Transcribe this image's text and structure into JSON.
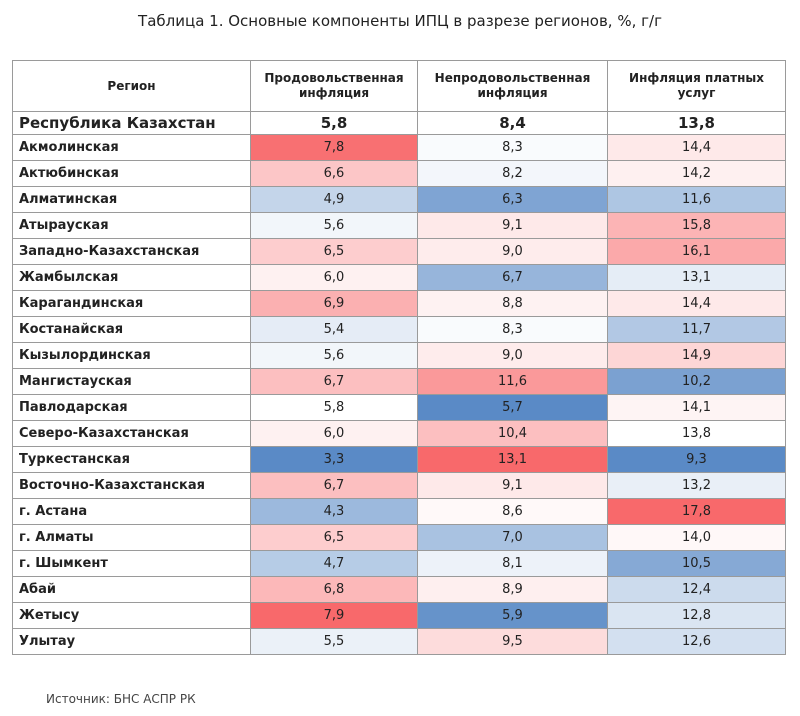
{
  "title": "Таблица 1. Основные компоненты ИПЦ в разрезе регионов, %, г/г",
  "table": {
    "header": [
      "Регион",
      "Продовольственная инфляция",
      "Непродовольственная инфляция",
      "Инфляция платных услуг"
    ],
    "rows": [
      [
        "Республика Казахстан",
        "5,8",
        "8,4",
        "13,8"
      ],
      [
        "Акмолинская",
        "7,8",
        "8,3",
        "14,4"
      ],
      [
        "Актюбинская",
        "6,6",
        "8,2",
        "14,2"
      ],
      [
        "Алматинская",
        "4,9",
        "6,3",
        "11,6"
      ],
      [
        "Атырауская",
        "5,6",
        "9,1",
        "15,8"
      ],
      [
        "Западно-Казахстанская",
        "6,5",
        "9,0",
        "16,1"
      ],
      [
        "Жамбылская",
        "6,0",
        "6,7",
        "13,1"
      ],
      [
        "Карагандинская",
        "6,9",
        "8,8",
        "14,4"
      ],
      [
        "Костанайская",
        "5,4",
        "8,3",
        "11,7"
      ],
      [
        "Кызылординская",
        "5,6",
        "9,0",
        "14,9"
      ],
      [
        "Мангистауская",
        "6,7",
        "11,6",
        "10,2"
      ],
      [
        "Павлодарская",
        "5,8",
        "5,7",
        "14,1"
      ],
      [
        "Северо-Казахстанская",
        "6,0",
        "10,4",
        "13,8"
      ],
      [
        "Туркестанская",
        "3,3",
        "13,1",
        "9,3"
      ],
      [
        "Восточно-Казахстанская",
        "6,7",
        "9,1",
        "13,2"
      ],
      [
        "г. Астана",
        "4,3",
        "8,6",
        "17,8"
      ],
      [
        "г. Алматы",
        "6,5",
        "7,0",
        "14,0"
      ],
      [
        "г. Шымкент",
        "4,7",
        "8,1",
        "10,5"
      ],
      [
        "Абай",
        "6,8",
        "8,9",
        "12,4"
      ],
      [
        "Жетысу",
        "7,9",
        "5,9",
        "12,8"
      ],
      [
        "Улытау",
        "5,5",
        "9,5",
        "12,6"
      ]
    ]
  },
  "source": "Источник: БНС АСПР РК"
}
